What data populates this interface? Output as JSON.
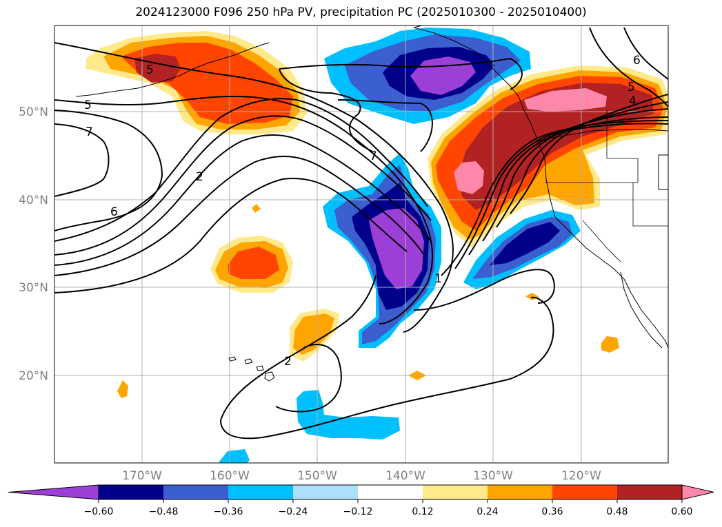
{
  "title": "2024123000 F096 250 hPa PV, precipitation PC (2025010300 - 2025010400)",
  "latitude_labels": [
    "50°N",
    "40°N",
    "30°N",
    "20°N"
  ],
  "longitude_labels": [
    "170°W",
    "160°W",
    "150°W",
    "140°W",
    "130°W",
    "120°W"
  ],
  "colorbar": {
    "ticks": [
      "−0.60",
      "−0.48",
      "−0.36",
      "−0.24",
      "−0.12",
      "0.12",
      "0.24",
      "0.36",
      "0.48",
      "0.60"
    ],
    "colors": [
      "#9b3fd6",
      "#00008b",
      "#3b5fcf",
      "#00bfff",
      "#ade0ff",
      "#ffffff",
      "#ffe98a",
      "#ffa500",
      "#ff4500",
      "#b22222",
      "#ff88aa"
    ]
  },
  "contour_labels": [
    "5",
    "5",
    "7",
    "6",
    "2",
    "7",
    "1",
    "2",
    "5",
    "4",
    "6"
  ]
}
